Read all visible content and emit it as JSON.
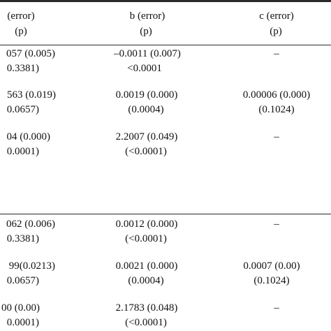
{
  "header": {
    "col1_top": "(error)",
    "col1_bottom": "(p)",
    "col2_top": "b (error)",
    "col2_bottom": "(p)",
    "col3_top": "c (error)",
    "col3_bottom": "(p)"
  },
  "section1": {
    "row1": {
      "a_est": "057 (0.005)",
      "a_p": "0.3381)",
      "b_est": "–0.0011 (0.007)",
      "b_p": "<0.0001",
      "c_est": "–"
    },
    "row2": {
      "a_est": "563 (0.019)",
      "a_p": "0.0657)",
      "b_est": "0.0019 (0.000)",
      "b_p": "(0.0004)",
      "c_est": "0.00006 (0.000)",
      "c_p": "(0.1024)"
    },
    "row3": {
      "a_est": "04 (0.000)",
      "a_p": "0.0001)",
      "b_est": "2.2007 (0.049)",
      "b_p": "(<0.0001)",
      "c_est": "–"
    }
  },
  "section2": {
    "row1": {
      "a_est": "062 (0.006)",
      "a_p": "0.3381)",
      "b_est": "0.0012 (0.000)",
      "b_p": "(<0.0001)",
      "c_est": "–"
    },
    "row2": {
      "a_est": "99(0.0213)",
      "a_p": "0.0657)",
      "b_est": "0.0021 (0.000)",
      "b_p": "(0.0004)",
      "c_est": "0.0007 (0.00)",
      "c_p": "(0.1024)"
    },
    "row3": {
      "a_est": "00 (0.00)",
      "a_p": "0.0001)",
      "b_est": "2.1783 (0.048)",
      "b_p": "(<0.0001)",
      "c_est": "–"
    }
  }
}
